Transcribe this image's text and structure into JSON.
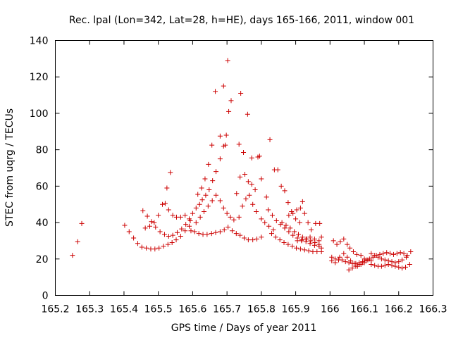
{
  "chart_data": {
    "type": "scatter",
    "title": "Rec. lpal (Lon=342, Lat=28, h=HE), days 165-166, 2011, window 001",
    "xlabel": "GPS time / Days of year 2011",
    "ylabel": "STEC from uqrg / TECUs",
    "xlim": [
      165.2,
      166.3
    ],
    "ylim": [
      0,
      140
    ],
    "xticks": [
      "165.2",
      "165.3",
      "165.4",
      "165.5",
      "165.6",
      "165.7",
      "165.8",
      "165.9",
      "166",
      "166.1",
      "166.2",
      "166.3"
    ],
    "yticks": [
      "0",
      "20",
      "40",
      "60",
      "80",
      "100",
      "120",
      "140"
    ],
    "grid": false,
    "marker": "+",
    "color": "#cc0000",
    "points": [
      [
        165.25,
        22
      ],
      [
        165.265,
        29.5
      ],
      [
        165.277,
        39.5
      ],
      [
        165.402,
        38.5
      ],
      [
        165.415,
        35
      ],
      [
        165.428,
        31.5
      ],
      [
        165.44,
        28.5
      ],
      [
        165.452,
        26.5
      ],
      [
        165.465,
        26
      ],
      [
        165.478,
        25.5
      ],
      [
        165.49,
        25.5
      ],
      [
        165.502,
        26
      ],
      [
        165.515,
        27
      ],
      [
        165.528,
        28
      ],
      [
        165.54,
        29
      ],
      [
        165.552,
        30.5
      ],
      [
        165.565,
        32.5
      ],
      [
        165.578,
        35.5
      ],
      [
        165.59,
        38
      ],
      [
        165.455,
        46.5
      ],
      [
        165.468,
        43.5
      ],
      [
        165.48,
        40.5
      ],
      [
        165.492,
        37.5
      ],
      [
        165.505,
        35
      ],
      [
        165.518,
        33.5
      ],
      [
        165.53,
        32.5
      ],
      [
        165.542,
        33
      ],
      [
        165.555,
        34.5
      ],
      [
        165.568,
        36.5
      ],
      [
        165.58,
        39
      ],
      [
        165.593,
        41
      ],
      [
        165.462,
        37
      ],
      [
        165.475,
        38
      ],
      [
        165.488,
        40
      ],
      [
        165.5,
        44
      ],
      [
        165.512,
        50
      ],
      [
        165.525,
        59
      ],
      [
        165.535,
        67.5
      ],
      [
        165.52,
        50.5
      ],
      [
        165.53,
        47
      ],
      [
        165.542,
        44
      ],
      [
        165.553,
        43
      ],
      [
        165.565,
        43
      ],
      [
        165.578,
        44
      ],
      [
        165.595,
        35.5
      ],
      [
        165.606,
        35
      ],
      [
        165.618,
        34
      ],
      [
        165.63,
        33.5
      ],
      [
        165.642,
        33.5
      ],
      [
        165.655,
        34
      ],
      [
        165.667,
        34.5
      ],
      [
        165.68,
        35
      ],
      [
        165.692,
        36
      ],
      [
        165.703,
        37.5
      ],
      [
        165.715,
        35.5
      ],
      [
        165.727,
        34
      ],
      [
        165.738,
        33
      ],
      [
        165.75,
        31.5
      ],
      [
        165.762,
        30.5
      ],
      [
        165.775,
        30.5
      ],
      [
        165.787,
        31
      ],
      [
        165.8,
        32
      ],
      [
        165.59,
        42
      ],
      [
        165.6,
        45
      ],
      [
        165.61,
        48
      ],
      [
        165.62,
        50
      ],
      [
        165.628,
        52.5
      ],
      [
        165.638,
        55
      ],
      [
        165.648,
        58
      ],
      [
        165.658,
        63
      ],
      [
        165.668,
        68
      ],
      [
        165.68,
        75
      ],
      [
        165.69,
        82
      ],
      [
        165.698,
        88
      ],
      [
        165.705,
        101
      ],
      [
        165.712,
        107
      ],
      [
        165.702,
        129
      ],
      [
        165.615,
        55.5
      ],
      [
        165.626,
        59
      ],
      [
        165.636,
        64
      ],
      [
        165.646,
        72
      ],
      [
        165.656,
        82.5
      ],
      [
        165.666,
        112
      ],
      [
        165.68,
        87.5
      ],
      [
        165.69,
        115
      ],
      [
        165.695,
        82.5
      ],
      [
        165.61,
        40
      ],
      [
        165.622,
        43
      ],
      [
        165.633,
        46
      ],
      [
        165.645,
        49
      ],
      [
        165.657,
        52
      ],
      [
        165.668,
        55
      ],
      [
        165.68,
        52
      ],
      [
        165.69,
        48
      ],
      [
        165.7,
        45
      ],
      [
        165.71,
        43
      ],
      [
        165.72,
        41.5
      ],
      [
        165.728,
        56
      ],
      [
        165.738,
        65
      ],
      [
        165.748,
        78.5
      ],
      [
        165.76,
        99.5
      ],
      [
        165.772,
        75.5
      ],
      [
        165.735,
        83
      ],
      [
        165.74,
        111
      ],
      [
        165.752,
        66.5
      ],
      [
        165.762,
        62.5
      ],
      [
        165.772,
        61
      ],
      [
        165.782,
        58
      ],
      [
        165.795,
        76.5
      ],
      [
        165.8,
        64
      ],
      [
        165.735,
        43
      ],
      [
        165.745,
        49
      ],
      [
        165.755,
        53
      ],
      [
        165.765,
        55
      ],
      [
        165.775,
        50
      ],
      [
        165.785,
        46
      ],
      [
        165.79,
        76
      ],
      [
        165.8,
        42
      ],
      [
        165.81,
        40
      ],
      [
        165.822,
        38
      ],
      [
        165.835,
        36
      ],
      [
        165.815,
        54
      ],
      [
        165.825,
        85.5
      ],
      [
        165.838,
        69
      ],
      [
        165.848,
        69
      ],
      [
        165.858,
        60
      ],
      [
        165.868,
        57.5
      ],
      [
        165.878,
        51
      ],
      [
        165.888,
        46
      ],
      [
        165.9,
        42
      ],
      [
        165.912,
        40
      ],
      [
        165.82,
        47
      ],
      [
        165.832,
        44
      ],
      [
        165.844,
        41
      ],
      [
        165.856,
        39
      ],
      [
        165.868,
        37
      ],
      [
        165.88,
        35
      ],
      [
        165.892,
        33
      ],
      [
        165.905,
        31.5
      ],
      [
        165.918,
        30.5
      ],
      [
        165.93,
        29.5
      ],
      [
        165.942,
        28.5
      ],
      [
        165.955,
        27.5
      ],
      [
        165.968,
        27
      ],
      [
        165.83,
        34
      ],
      [
        165.842,
        32
      ],
      [
        165.854,
        30.5
      ],
      [
        165.866,
        29
      ],
      [
        165.878,
        28
      ],
      [
        165.89,
        27
      ],
      [
        165.902,
        26
      ],
      [
        165.914,
        25.5
      ],
      [
        165.926,
        25
      ],
      [
        165.938,
        24.5
      ],
      [
        165.95,
        24
      ],
      [
        165.962,
        24
      ],
      [
        165.975,
        24
      ],
      [
        165.86,
        40
      ],
      [
        165.872,
        38.5
      ],
      [
        165.884,
        37
      ],
      [
        165.896,
        35
      ],
      [
        165.908,
        33.5
      ],
      [
        165.92,
        32
      ],
      [
        165.932,
        31
      ],
      [
        165.944,
        30
      ],
      [
        165.956,
        29
      ],
      [
        165.968,
        28
      ],
      [
        165.88,
        44
      ],
      [
        165.892,
        45
      ],
      [
        165.903,
        47
      ],
      [
        165.914,
        48
      ],
      [
        165.92,
        51.5
      ],
      [
        165.926,
        45
      ],
      [
        165.936,
        40
      ],
      [
        165.945,
        36
      ],
      [
        165.958,
        39.5
      ],
      [
        165.97,
        39.5
      ],
      [
        165.905,
        30
      ],
      [
        165.917,
        30
      ],
      [
        165.93,
        31
      ],
      [
        165.942,
        32
      ],
      [
        165.955,
        31
      ],
      [
        165.968,
        30
      ],
      [
        165.975,
        26
      ],
      [
        165.975,
        32
      ],
      [
        166.01,
        30
      ],
      [
        166.02,
        28
      ],
      [
        166.03,
        29.5
      ],
      [
        166.04,
        31
      ],
      [
        166.05,
        28
      ],
      [
        166.058,
        26
      ],
      [
        166.068,
        24
      ],
      [
        166.078,
        22.5
      ],
      [
        166.09,
        22
      ],
      [
        166.1,
        20
      ],
      [
        166.11,
        19.5
      ],
      [
        166.12,
        19
      ],
      [
        166.005,
        21
      ],
      [
        166.015,
        20
      ],
      [
        166.025,
        19.5
      ],
      [
        166.035,
        19.5
      ],
      [
        166.045,
        18.5
      ],
      [
        166.055,
        18
      ],
      [
        166.065,
        17.5
      ],
      [
        166.075,
        17.5
      ],
      [
        166.085,
        18
      ],
      [
        166.095,
        18.5
      ],
      [
        166.105,
        19
      ],
      [
        166.005,
        19
      ],
      [
        166.015,
        18
      ],
      [
        166.028,
        21
      ],
      [
        166.04,
        23
      ],
      [
        166.05,
        21
      ],
      [
        166.06,
        19
      ],
      [
        166.07,
        17.5
      ],
      [
        166.08,
        16
      ],
      [
        166.09,
        17
      ],
      [
        166.1,
        18
      ],
      [
        166.055,
        14
      ],
      [
        166.065,
        15
      ],
      [
        166.075,
        16
      ],
      [
        166.085,
        17
      ],
      [
        166.095,
        18
      ],
      [
        166.105,
        19.5
      ],
      [
        166.115,
        20
      ],
      [
        166.125,
        21
      ],
      [
        166.135,
        22
      ],
      [
        166.145,
        22.5
      ],
      [
        166.155,
        23
      ],
      [
        166.165,
        23.5
      ],
      [
        166.175,
        23
      ],
      [
        166.185,
        22.5
      ],
      [
        166.195,
        23
      ],
      [
        166.205,
        23.5
      ],
      [
        166.215,
        23
      ],
      [
        166.225,
        22
      ],
      [
        166.235,
        24
      ],
      [
        166.12,
        17
      ],
      [
        166.13,
        16.5
      ],
      [
        166.14,
        16
      ],
      [
        166.15,
        16
      ],
      [
        166.16,
        16.5
      ],
      [
        166.17,
        17
      ],
      [
        166.18,
        16.5
      ],
      [
        166.19,
        16
      ],
      [
        166.2,
        15.5
      ],
      [
        166.21,
        15
      ],
      [
        166.22,
        15.5
      ],
      [
        166.232,
        17
      ],
      [
        166.12,
        23
      ],
      [
        166.13,
        22
      ],
      [
        166.14,
        21
      ],
      [
        166.15,
        20
      ],
      [
        166.16,
        19.5
      ],
      [
        166.17,
        19
      ],
      [
        166.18,
        18.5
      ],
      [
        166.19,
        18
      ],
      [
        166.2,
        18.5
      ],
      [
        166.21,
        19.5
      ],
      [
        166.222,
        21
      ]
    ]
  }
}
